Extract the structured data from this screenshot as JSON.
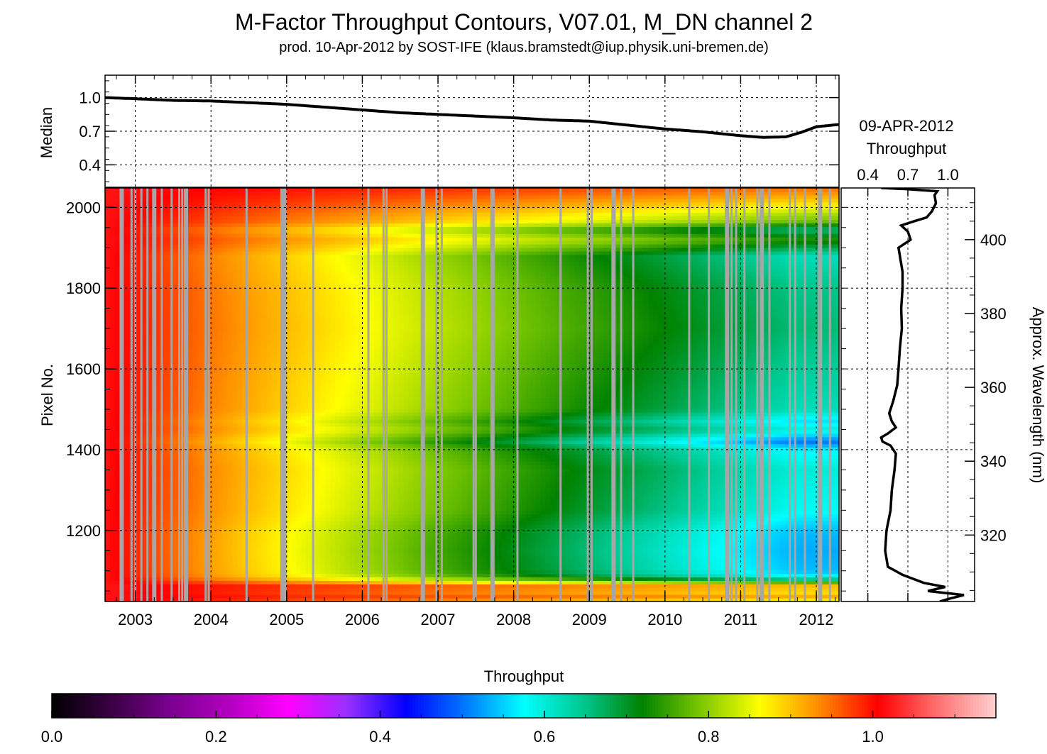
{
  "chart_data": [
    {
      "type": "line",
      "title": "M-Factor Throughput Contours, V07.01, M_DN channel 2",
      "subtitle": "prod. 10-Apr-2012 by SOST-IFE (klaus.bramstedt@iup.physik.uni-bremen.de)",
      "ylabel": "Median",
      "yticks": [
        "0.4",
        "0.7",
        "1.0"
      ],
      "ylim": [
        0.2,
        1.2
      ],
      "xlim": [
        2002.6,
        2012.3
      ],
      "grid": true,
      "x": [
        2002.6,
        2003.0,
        2003.5,
        2004.0,
        2004.5,
        2005.0,
        2005.5,
        2006.0,
        2006.5,
        2007.0,
        2007.5,
        2008.0,
        2008.5,
        2009.0,
        2009.5,
        2010.0,
        2010.5,
        2011.0,
        2011.3,
        2011.6,
        2011.8,
        2012.0,
        2012.3
      ],
      "values": [
        1.0,
        0.99,
        0.975,
        0.97,
        0.955,
        0.94,
        0.915,
        0.89,
        0.865,
        0.85,
        0.835,
        0.82,
        0.8,
        0.79,
        0.755,
        0.72,
        0.695,
        0.66,
        0.645,
        0.65,
        0.69,
        0.74,
        0.76
      ]
    },
    {
      "type": "heatmap",
      "ylabel": "Pixel No.",
      "xticks": [
        "2003",
        "2004",
        "2005",
        "2006",
        "2007",
        "2008",
        "2009",
        "2010",
        "2011",
        "2012"
      ],
      "yticks": [
        "1200",
        "1400",
        "1600",
        "1800",
        "2000"
      ],
      "xlim": [
        2002.6,
        2012.3
      ],
      "ylim": [
        1024,
        2048
      ],
      "colorbar": {
        "title": "Throughput",
        "ticks": [
          "0.0",
          "0.2",
          "0.4",
          "0.6",
          "0.8",
          "1.0"
        ],
        "range": [
          0.0,
          1.15
        ],
        "colors": [
          "#000000",
          "#3a0044",
          "#7a0090",
          "#b300c0",
          "#ff00ff",
          "#9b30ff",
          "#0000ff",
          "#0078ff",
          "#00ffff",
          "#00c890",
          "#008200",
          "#7cc800",
          "#ffff00",
          "#ff8c00",
          "#ff0000",
          "#ff6f6f",
          "#ffd0d0"
        ]
      },
      "row_profile": {
        "pixel": [
          1024,
          1040,
          1050,
          1060,
          1075,
          1085,
          1100,
          1150,
          1200,
          1250,
          1300,
          1350,
          1400,
          1420,
          1435,
          1450,
          1470,
          1500,
          1600,
          1700,
          1800,
          1880,
          1920,
          1945,
          1965,
          1985,
          2010,
          2030,
          2048
        ],
        "final_throughput": [
          0.85,
          0.93,
          0.85,
          0.95,
          0.72,
          0.58,
          0.54,
          0.53,
          0.54,
          0.58,
          0.59,
          0.6,
          0.57,
          0.5,
          0.55,
          0.6,
          0.56,
          0.62,
          0.64,
          0.66,
          0.65,
          0.62,
          0.74,
          0.66,
          0.78,
          0.82,
          0.88,
          0.92,
          0.95
        ]
      },
      "data_gaps": [
        2002.82,
        2002.95,
        2003.0,
        2003.08,
        2003.16,
        2003.25,
        2003.35,
        2003.48,
        2003.58,
        2003.62,
        2003.67,
        2003.93,
        2003.97,
        2004.47,
        2004.93,
        2004.97,
        2005.35,
        2006.08,
        2006.28,
        2006.32,
        2006.8,
        2006.98,
        2007.05,
        2007.47,
        2007.5,
        2007.72,
        2008.05,
        2008.62,
        2008.98,
        2009.03,
        2009.32,
        2009.42,
        2009.58,
        2010.32,
        2010.58,
        2010.82,
        2010.88,
        2010.94,
        2011.05,
        2011.22,
        2011.28,
        2011.38,
        2011.65,
        2011.72,
        2011.85,
        2012.05,
        2012.18
      ]
    },
    {
      "type": "line",
      "title": "09-APR-2012",
      "subtitle": "Throughput",
      "ylabel": "Approx. Wavelength (nm)",
      "xticks": [
        "0.4",
        "0.7",
        "1.0"
      ],
      "yticks": [
        "320",
        "340",
        "360",
        "380",
        "400"
      ],
      "xlim": [
        0.2,
        1.2
      ],
      "wavelength_range": [
        302,
        414
      ],
      "pixel": [
        1024,
        1030,
        1040,
        1050,
        1060,
        1070,
        1090,
        1110,
        1150,
        1200,
        1250,
        1300,
        1350,
        1390,
        1410,
        1420,
        1430,
        1440,
        1455,
        1470,
        1490,
        1520,
        1560,
        1600,
        1650,
        1700,
        1750,
        1800,
        1840,
        1880,
        1900,
        1920,
        1940,
        1955,
        1965,
        1975,
        1990,
        2010,
        2030,
        2040,
        2045,
        2048
      ],
      "values": [
        0.94,
        1.0,
        1.12,
        0.85,
        0.98,
        0.82,
        0.66,
        0.55,
        0.53,
        0.54,
        0.57,
        0.58,
        0.6,
        0.61,
        0.57,
        0.51,
        0.5,
        0.55,
        0.61,
        0.58,
        0.56,
        0.59,
        0.62,
        0.63,
        0.64,
        0.655,
        0.65,
        0.66,
        0.66,
        0.64,
        0.63,
        0.72,
        0.7,
        0.65,
        0.74,
        0.84,
        0.88,
        0.91,
        0.9,
        0.92,
        0.7,
        0.5
      ]
    }
  ]
}
